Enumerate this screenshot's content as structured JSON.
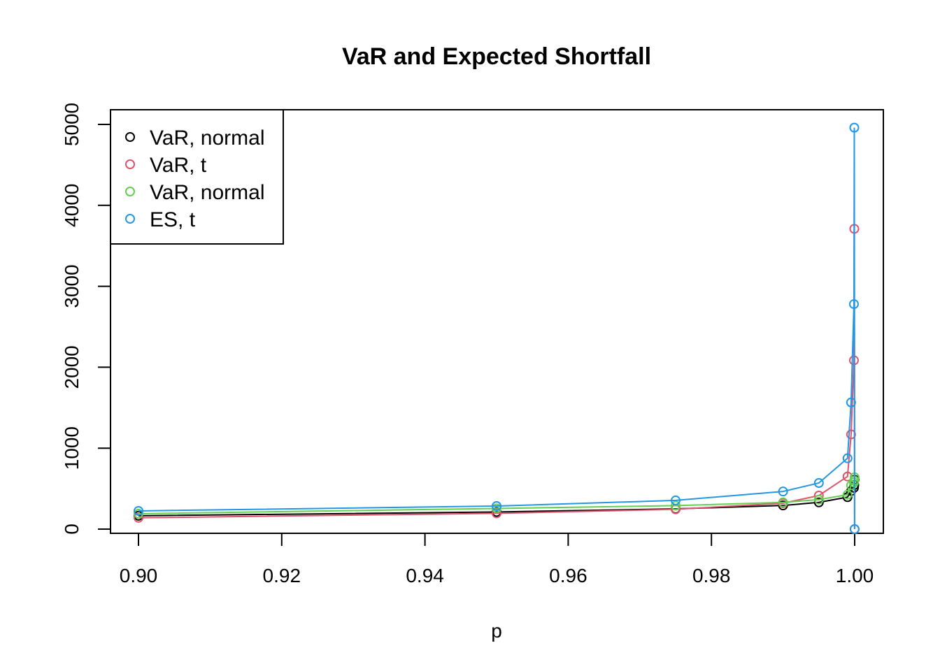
{
  "chart_data": {
    "type": "line",
    "title": "VaR and Expected Shortfall",
    "xlabel": "p",
    "ylabel": "",
    "xlim": [
      0.9,
      1.0
    ],
    "ylim": [
      0,
      5000
    ],
    "x": [
      0.9,
      0.95,
      0.975,
      0.99,
      0.995,
      0.999,
      0.9995,
      0.9999,
      0.99995,
      0.99999
    ],
    "xticks": [
      "0.90",
      "0.92",
      "0.94",
      "0.96",
      "0.98",
      "1.00"
    ],
    "yticks": [
      "0",
      "1000",
      "2000",
      "3000",
      "4000",
      "5000"
    ],
    "grid": false,
    "legend_position": "top-left",
    "series": [
      {
        "name": "VaR, normal",
        "color": "#000000",
        "values": [
          165,
          212,
          250,
          292,
          330,
          395,
          470,
          510,
          545,
          610
        ]
      },
      {
        "name": "VaR, t",
        "color": "#DF536B",
        "values": [
          140,
          195,
          245,
          320,
          415,
          650,
          1170,
          2085,
          3710,
          0
        ]
      },
      {
        "name": "VaR, normal",
        "color": "#61D04F",
        "values": [
          190,
          255,
          290,
          330,
          365,
          425,
          540,
          575,
          600,
          640
        ]
      },
      {
        "name": "ES, t",
        "color": "#2297E6",
        "values": [
          225,
          285,
          355,
          465,
          570,
          875,
          1565,
          2780,
          4960,
          0
        ]
      }
    ]
  }
}
